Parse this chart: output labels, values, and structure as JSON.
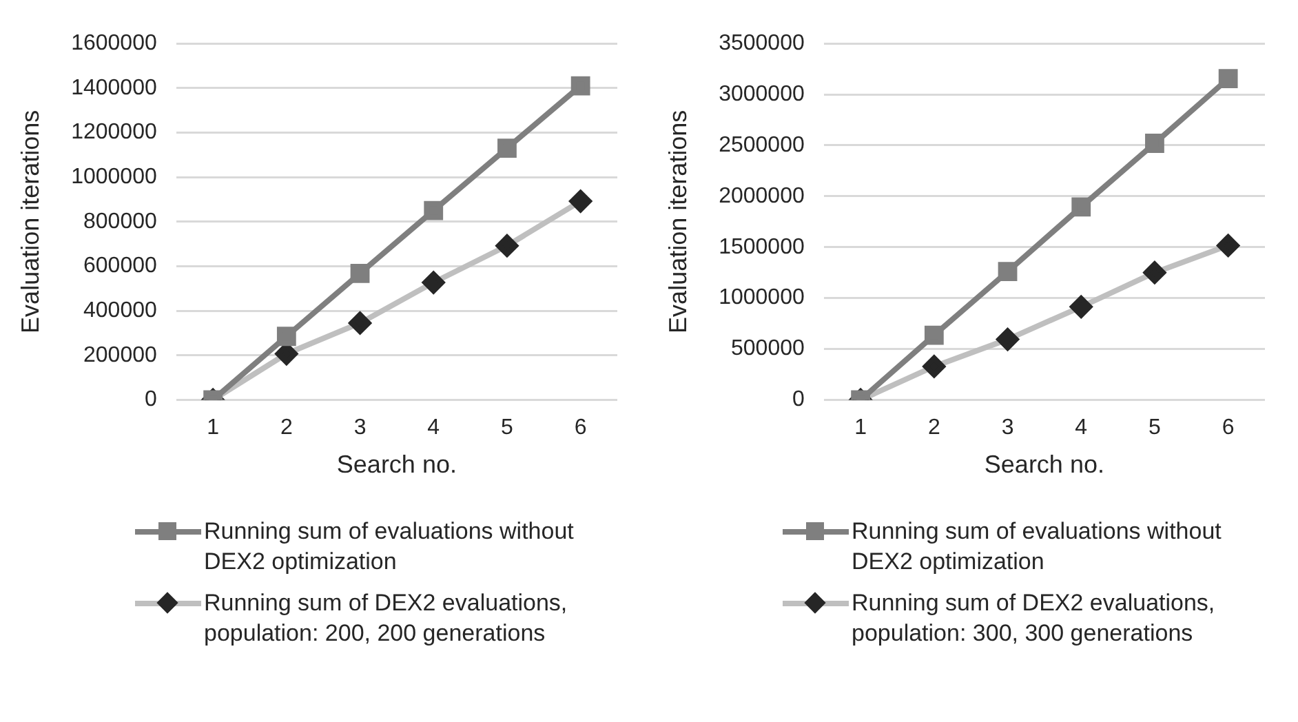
{
  "chart_data": [
    {
      "type": "line",
      "categories": [
        "1",
        "2",
        "3",
        "4",
        "5",
        "6"
      ],
      "xlabel": "Search no.",
      "ylabel": "Evaluation iterations",
      "ylim": [
        0,
        1600000
      ],
      "yticks": [
        0,
        200000,
        400000,
        600000,
        800000,
        1000000,
        1200000,
        1400000,
        1600000
      ],
      "grid": "y",
      "legend": "bottom",
      "series": [
        {
          "name": "Running sum of evaluations without DEX2 optimization",
          "color": "#7f7f7f",
          "marker": "square",
          "values": [
            0,
            285000,
            568000,
            850000,
            1130000,
            1410000
          ]
        },
        {
          "name": "Running sum of DEX2 evaluations, population: 200, 200 generations",
          "color": "#bfbfbf",
          "marker": "diamond",
          "values": [
            0,
            207000,
            345000,
            527000,
            692000,
            892000
          ]
        }
      ]
    },
    {
      "type": "line",
      "categories": [
        "1",
        "2",
        "3",
        "4",
        "5",
        "6"
      ],
      "xlabel": "Search no.",
      "ylabel": "Evaluation iterations",
      "ylim": [
        0,
        3500000
      ],
      "yticks": [
        0,
        500000,
        1000000,
        1500000,
        2000000,
        2500000,
        3000000,
        3500000
      ],
      "grid": "y",
      "legend": "bottom",
      "series": [
        {
          "name": "Running sum of evaluations without DEX2 optimization",
          "color": "#7f7f7f",
          "marker": "square",
          "values": [
            0,
            635000,
            1260000,
            1895000,
            2520000,
            3155000
          ]
        },
        {
          "name": "Running sum of DEX2 evaluations, population: 300, 300 generations",
          "color": "#bfbfbf",
          "marker": "diamond",
          "values": [
            0,
            328000,
            594000,
            914000,
            1250000,
            1516000
          ]
        }
      ]
    }
  ]
}
